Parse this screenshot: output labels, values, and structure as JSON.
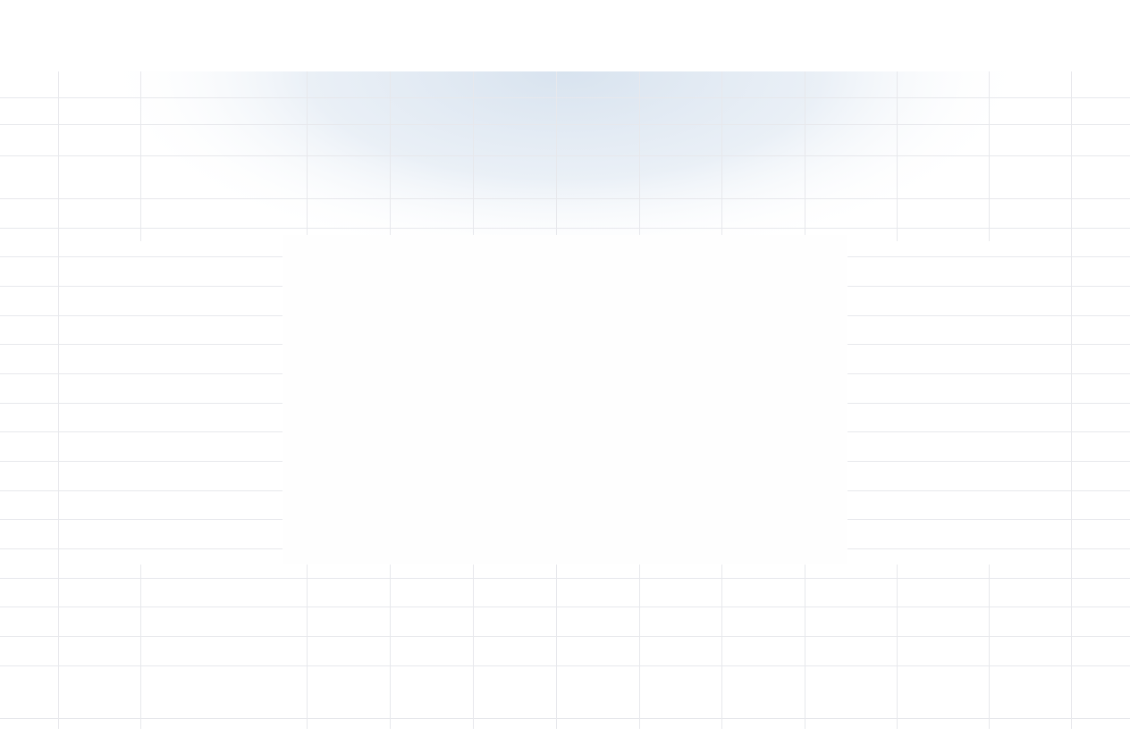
{
  "page": {
    "background_color": "#ffffff",
    "grid_line_color": "#e7e8ec",
    "header_glow_color": "#dde7f1",
    "panel_color": "#fefefe"
  },
  "center_panel": {
    "text": ""
  }
}
